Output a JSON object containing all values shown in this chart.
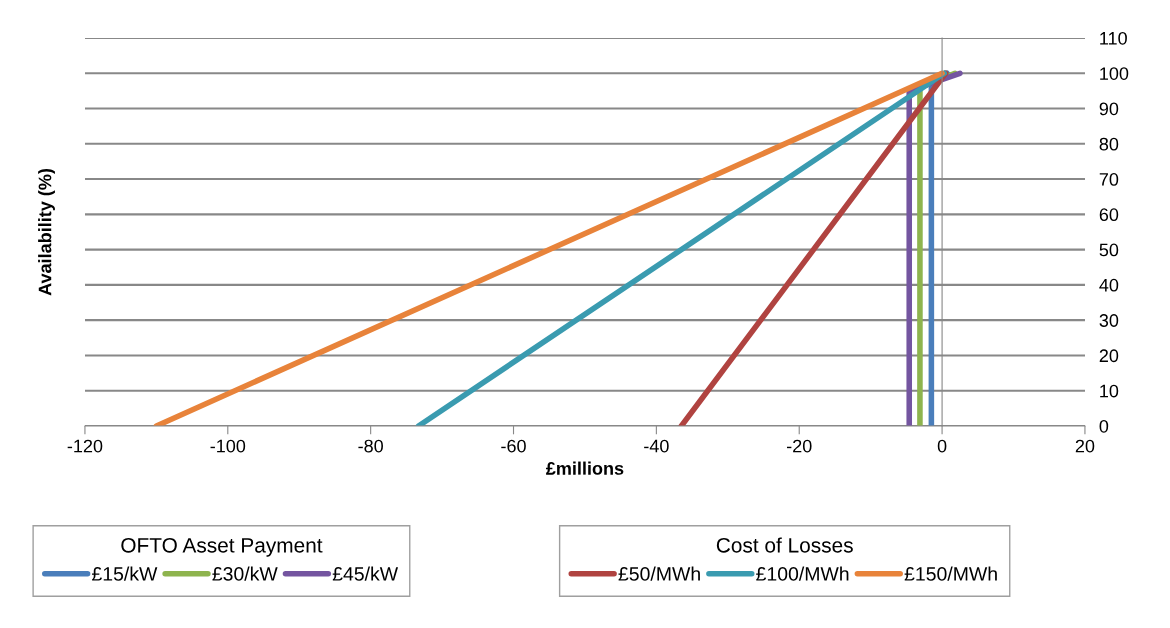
{
  "chart_data": {
    "type": "line",
    "xlabel": "£millions",
    "ylabel": "Availability (%)",
    "xlim": [
      -120,
      20
    ],
    "xticks": [
      -120,
      -100,
      -80,
      -60,
      -40,
      -20,
      0,
      20
    ],
    "ylim": [
      0,
      110
    ],
    "yticks": [
      0,
      10,
      20,
      30,
      40,
      50,
      60,
      70,
      80,
      90,
      100,
      110
    ],
    "grid": "y",
    "legend": "bottom",
    "marker": "none",
    "line_style": "solid",
    "annotations": [
      "OFTO Asset Payment",
      "Cost of Losses"
    ],
    "series": [
      {
        "name": "£15/kW",
        "color": "#4a7ebb",
        "x": [
          -1.5,
          -1.5,
          0.7
        ],
        "values": [
          0,
          96,
          100
        ]
      },
      {
        "name": "£30/kW",
        "color": "#8eb44e",
        "x": [
          -3.1,
          -3.1,
          1.8
        ],
        "values": [
          0,
          96,
          100
        ]
      },
      {
        "name": "£45/kW",
        "color": "#7455a0",
        "x": [
          -4.6,
          -4.6,
          2.5
        ],
        "values": [
          0,
          95,
          100
        ]
      },
      {
        "name": "£50/MWh",
        "color": "#b04340",
        "x": [
          -36.5,
          0.5
        ],
        "values": [
          0,
          100
        ]
      },
      {
        "name": "£100/MWh",
        "color": "#3a9bb0",
        "x": [
          -73.3,
          0.3
        ],
        "values": [
          0,
          100
        ]
      },
      {
        "name": "£150/MWh",
        "color": "#e8833a",
        "x": [
          -110,
          0
        ],
        "values": [
          0,
          100
        ]
      }
    ]
  }
}
